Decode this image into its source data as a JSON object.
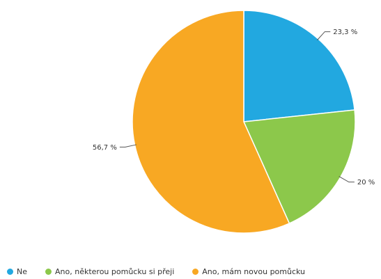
{
  "chart_data": {
    "type": "pie",
    "categories": [
      "Ne",
      "Ano, některou pomůcku si přeji",
      "Ano, mám novou pomůcku"
    ],
    "values": [
      23.3,
      20,
      56.7
    ],
    "data_labels": [
      "23,3 %",
      "20 %",
      "56,7 %"
    ],
    "colors": [
      "#22a8e0",
      "#8cc84b",
      "#f8a823"
    ],
    "start_angle_deg": 0,
    "direction": "clockwise",
    "legend_position": "bottom-left"
  }
}
